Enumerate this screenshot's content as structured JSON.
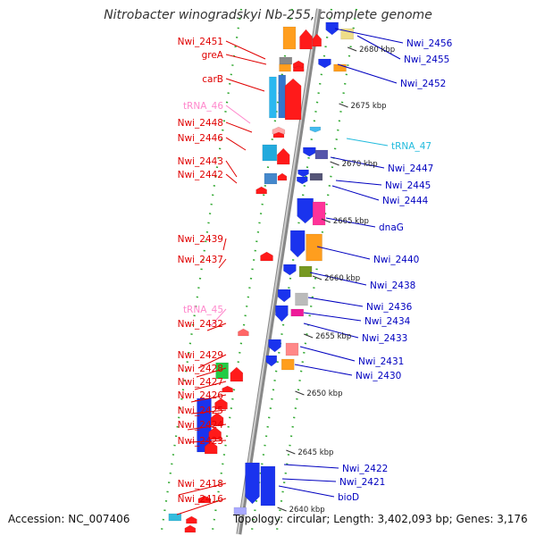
{
  "title": "Nitrobacter winogradskyi Nb-255, complete genome",
  "footer": {
    "accession": "Accession: NC_007406",
    "summary": "Topology: circular; Length: 3,402,093 bp; Genes: 3,176"
  },
  "colors": {
    "reverse_label": "#e00000",
    "forward_label": "#0000c0",
    "trna_reverse_label": "#ff88cc",
    "trna_forward_label": "#22bbdd",
    "backbone": "#999999",
    "tick": "#007700"
  },
  "scale_ticks": [
    {
      "label": "2680 kbp"
    },
    {
      "label": "2675 kbp"
    },
    {
      "label": "2670 kbp"
    },
    {
      "label": "2665 kbp"
    },
    {
      "label": "2660 kbp"
    },
    {
      "label": "2655 kbp"
    },
    {
      "label": "2650 kbp"
    },
    {
      "label": "2645 kbp"
    },
    {
      "label": "2640 kbp"
    }
  ],
  "reverse_labels": [
    {
      "text": "Nwi_2451",
      "type": "gene"
    },
    {
      "text": "greA",
      "type": "gene"
    },
    {
      "text": "carB",
      "type": "gene"
    },
    {
      "text": "tRNA_46",
      "type": "trna"
    },
    {
      "text": "Nwi_2448",
      "type": "gene"
    },
    {
      "text": "Nwi_2446",
      "type": "gene"
    },
    {
      "text": "Nwi_2443",
      "type": "gene"
    },
    {
      "text": "Nwi_2442",
      "type": "gene"
    },
    {
      "text": "Nwi_2439",
      "type": "gene"
    },
    {
      "text": "Nwi_2437",
      "type": "gene"
    },
    {
      "text": "tRNA_45",
      "type": "trna"
    },
    {
      "text": "Nwi_2432",
      "type": "gene"
    },
    {
      "text": "Nwi_2429",
      "type": "gene"
    },
    {
      "text": "Nwi_2428",
      "type": "gene"
    },
    {
      "text": "Nwi_2427",
      "type": "gene"
    },
    {
      "text": "Nwi_2426",
      "type": "gene"
    },
    {
      "text": "Nwi_2425",
      "type": "gene"
    },
    {
      "text": "Nwi_2424",
      "type": "gene"
    },
    {
      "text": "Nwi_2423",
      "type": "gene"
    },
    {
      "text": "Nwi_2418",
      "type": "gene"
    },
    {
      "text": "Nwi_2416",
      "type": "gene"
    }
  ],
  "forward_labels": [
    {
      "text": "Nwi_2456",
      "type": "gene"
    },
    {
      "text": "Nwi_2455",
      "type": "gene"
    },
    {
      "text": "Nwi_2452",
      "type": "gene"
    },
    {
      "text": "tRNA_47",
      "type": "trna"
    },
    {
      "text": "Nwi_2447",
      "type": "gene"
    },
    {
      "text": "Nwi_2445",
      "type": "gene"
    },
    {
      "text": "Nwi_2444",
      "type": "gene"
    },
    {
      "text": "dnaG",
      "type": "gene"
    },
    {
      "text": "Nwi_2440",
      "type": "gene"
    },
    {
      "text": "Nwi_2438",
      "type": "gene"
    },
    {
      "text": "Nwi_2436",
      "type": "gene"
    },
    {
      "text": "Nwi_2434",
      "type": "gene"
    },
    {
      "text": "Nwi_2433",
      "type": "gene"
    },
    {
      "text": "Nwi_2431",
      "type": "gene"
    },
    {
      "text": "Nwi_2430",
      "type": "gene"
    },
    {
      "text": "Nwi_2422",
      "type": "gene"
    },
    {
      "text": "Nwi_2421",
      "type": "gene"
    },
    {
      "text": "bioD",
      "type": "gene"
    }
  ]
}
